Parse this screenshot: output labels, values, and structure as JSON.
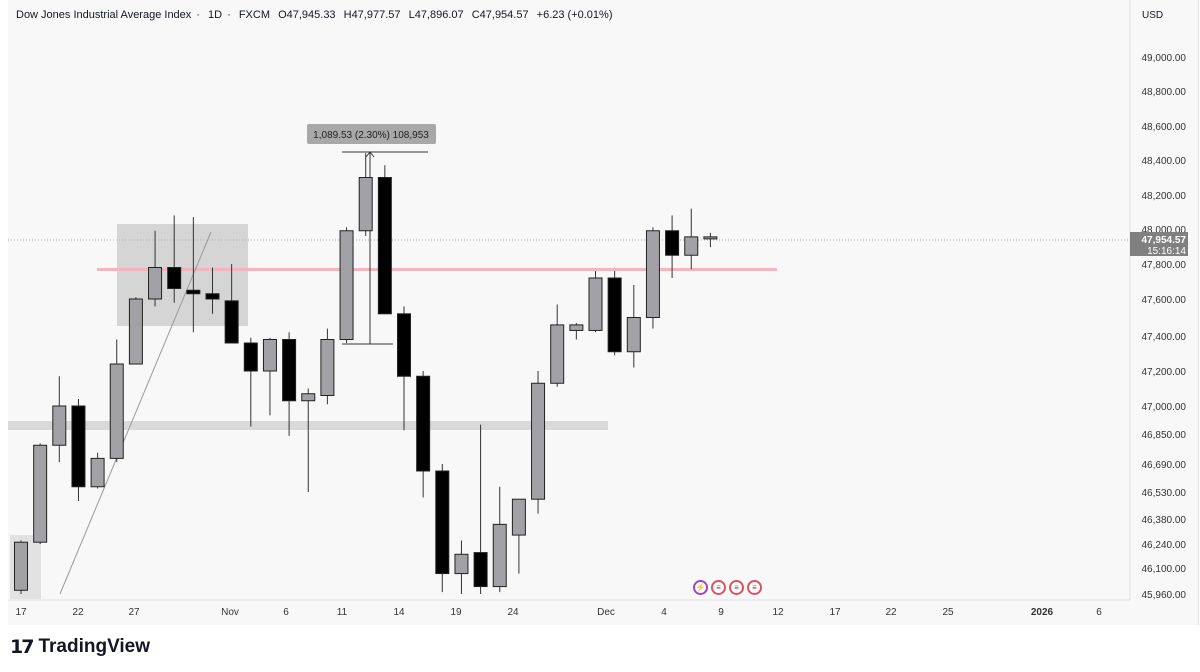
{
  "legend": {
    "title": "Dow Jones Industrial Average Index",
    "interval": "1D",
    "source": "FXCM",
    "open": "O47,945.33",
    "high": "H47,977.57",
    "low": "L47,896.07",
    "close": "C47,954.57",
    "change": "+6.23 (+0.01%)"
  },
  "currency": "USD",
  "last_price": "47,954.57",
  "countdown": "15:16:14",
  "measure_label": "1,089.53 (2.30%) 108,953",
  "brand": {
    "mark": "17",
    "name": "TradingView"
  },
  "price_axis": [
    "49,000.00",
    "48,800.00",
    "48,600.00",
    "48,400.00",
    "48,200.00",
    "48,000.00",
    "47,800.00",
    "47,600.00",
    "47,400.00",
    "47,200.00",
    "47,000.00",
    "46,850.00",
    "46,690.00",
    "46,530.00",
    "46,380.00",
    "46,240.00",
    "46,100.00",
    "45,960.00"
  ],
  "time_axis": [
    "17",
    "22",
    "27",
    "Nov",
    "6",
    "11",
    "14",
    "19",
    "24",
    "Dec",
    "4",
    "9",
    "12",
    "17",
    "22",
    "25",
    "2026",
    "6"
  ],
  "colors": {
    "up": "#a2a2a6",
    "down": "#000000",
    "zone": "#cfcfcf",
    "red_line": "#f5b5bf",
    "band": "#d9d9d9",
    "lastprice_bg": "#808080"
  },
  "chart_data": {
    "type": "candlestick",
    "ylim": [
      45960,
      49100
    ],
    "candles": [
      {
        "o": 45980,
        "h": 46260,
        "l": 45960,
        "c": 46250
      },
      {
        "o": 46250,
        "h": 46800,
        "l": 46240,
        "c": 46790
      },
      {
        "o": 46790,
        "h": 47170,
        "l": 46700,
        "c": 47000
      },
      {
        "o": 47000,
        "h": 47040,
        "l": 46480,
        "c": 46560
      },
      {
        "o": 46560,
        "h": 46750,
        "l": 46550,
        "c": 46720
      },
      {
        "o": 46720,
        "h": 47380,
        "l": 46700,
        "c": 47240
      },
      {
        "o": 47240,
        "h": 47610,
        "l": 47240,
        "c": 47600
      },
      {
        "o": 47600,
        "h": 47990,
        "l": 47560,
        "c": 47780
      },
      {
        "o": 47780,
        "h": 48080,
        "l": 47580,
        "c": 47660
      },
      {
        "o": 47650,
        "h": 48070,
        "l": 47420,
        "c": 47630
      },
      {
        "o": 47630,
        "h": 47780,
        "l": 47520,
        "c": 47600
      },
      {
        "o": 47590,
        "h": 47800,
        "l": 47380,
        "c": 47360
      },
      {
        "o": 47360,
        "h": 47390,
        "l": 46890,
        "c": 47200
      },
      {
        "o": 47200,
        "h": 47390,
        "l": 46950,
        "c": 47380
      },
      {
        "o": 47380,
        "h": 47420,
        "l": 46840,
        "c": 47030
      },
      {
        "o": 47030,
        "h": 47100,
        "l": 46530,
        "c": 47070
      },
      {
        "o": 47060,
        "h": 47440,
        "l": 47010,
        "c": 47380
      },
      {
        "o": 47380,
        "h": 48010,
        "l": 47360,
        "c": 47990
      },
      {
        "o": 47990,
        "h": 48440,
        "l": 47960,
        "c": 48300
      },
      {
        "o": 48300,
        "h": 48370,
        "l": 47520,
        "c": 47520
      },
      {
        "o": 47520,
        "h": 47560,
        "l": 46870,
        "c": 47170
      },
      {
        "o": 47170,
        "h": 47200,
        "l": 46500,
        "c": 46650
      },
      {
        "o": 46650,
        "h": 46690,
        "l": 45970,
        "c": 46070
      },
      {
        "o": 46070,
        "h": 46260,
        "l": 45960,
        "c": 46180
      },
      {
        "o": 46190,
        "h": 46900,
        "l": 45960,
        "c": 46000
      },
      {
        "o": 46000,
        "h": 46560,
        "l": 45970,
        "c": 46350
      },
      {
        "o": 46290,
        "h": 46490,
        "l": 46070,
        "c": 46490
      },
      {
        "o": 46490,
        "h": 47200,
        "l": 46410,
        "c": 47130
      },
      {
        "o": 47130,
        "h": 47570,
        "l": 47110,
        "c": 47460
      },
      {
        "o": 47430,
        "h": 47470,
        "l": 47380,
        "c": 47460
      },
      {
        "o": 47430,
        "h": 47760,
        "l": 47420,
        "c": 47720
      },
      {
        "o": 47720,
        "h": 47760,
        "l": 47290,
        "c": 47310
      },
      {
        "o": 47310,
        "h": 47680,
        "l": 47220,
        "c": 47500
      },
      {
        "o": 47500,
        "h": 48010,
        "l": 47440,
        "c": 47990
      },
      {
        "o": 47990,
        "h": 48080,
        "l": 47720,
        "c": 47850
      },
      {
        "o": 47850,
        "h": 48120,
        "l": 47770,
        "c": 47955
      },
      {
        "o": 47945,
        "h": 47978,
        "l": 47896,
        "c": 47955
      }
    ]
  }
}
